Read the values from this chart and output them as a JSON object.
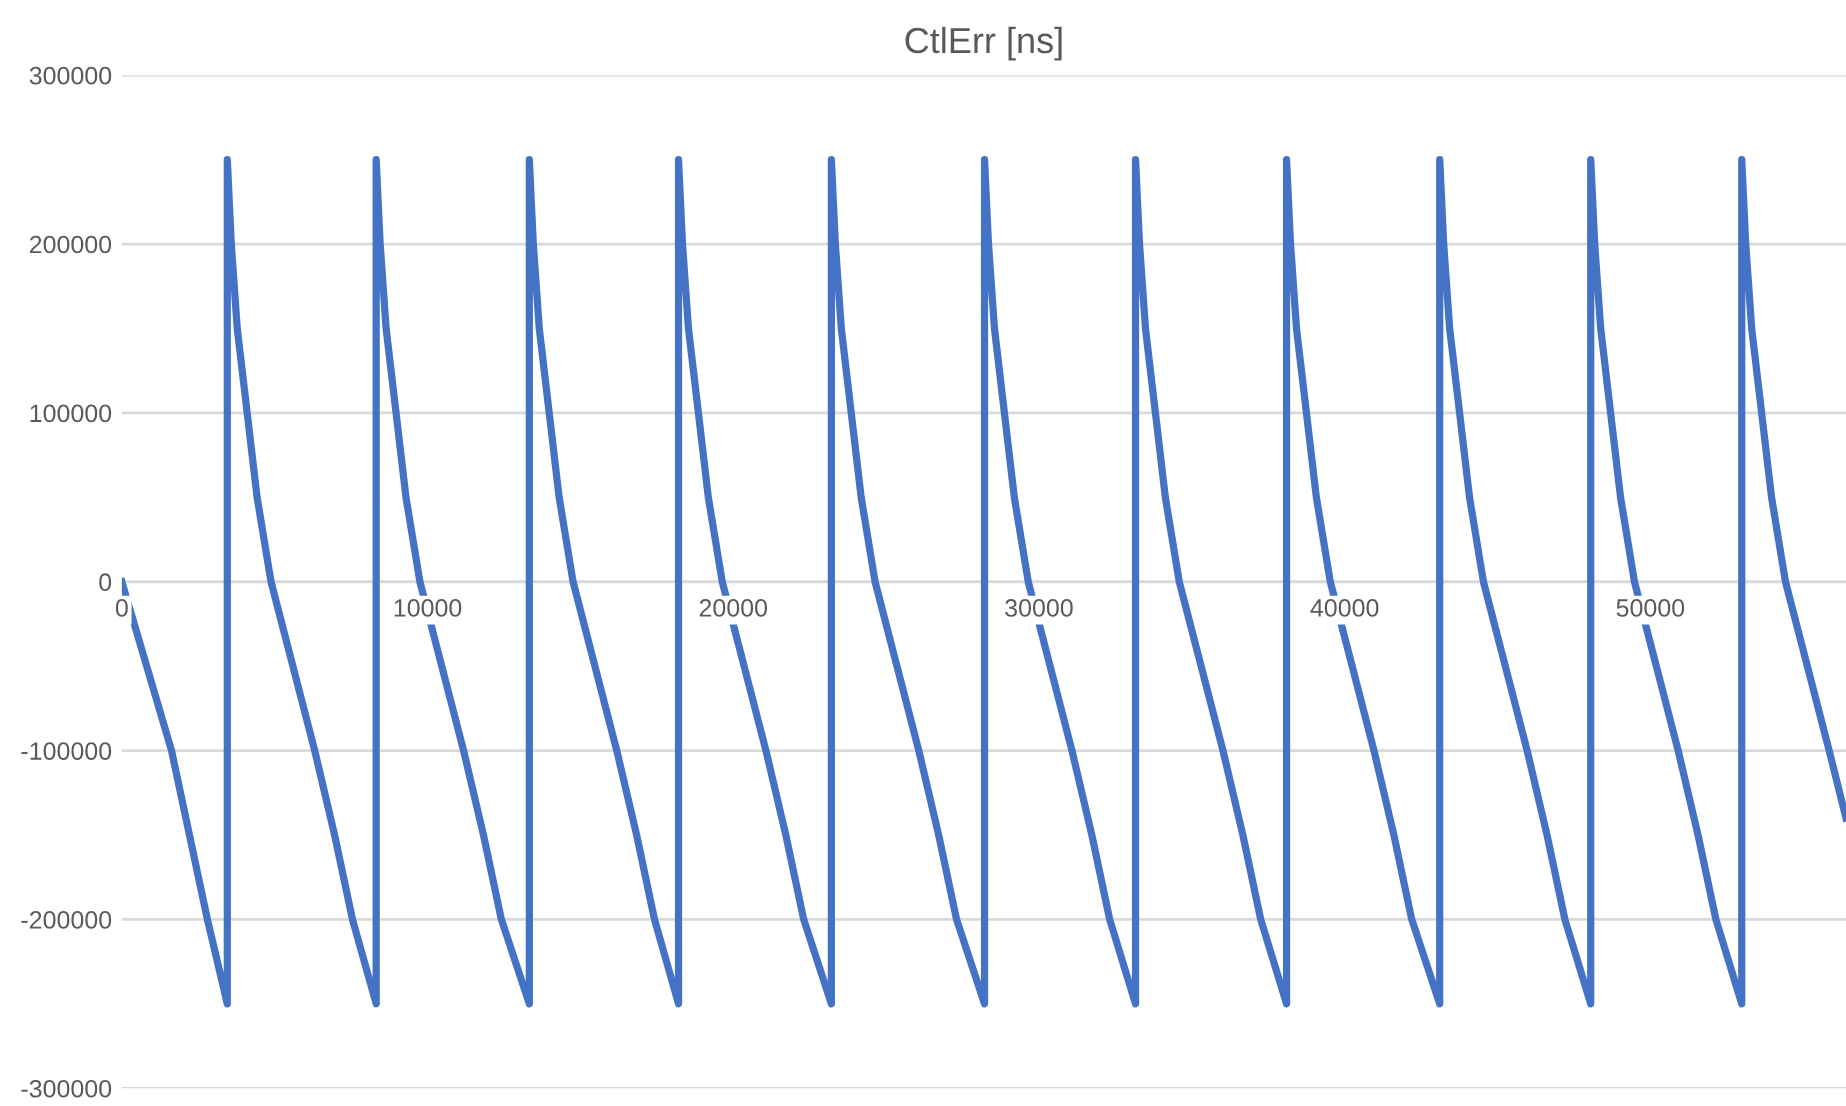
{
  "chart_data": {
    "type": "line",
    "title": "CtlErr [ns]",
    "xlim": [
      0,
      56400
    ],
    "xticks": [
      0,
      10000,
      20000,
      30000,
      40000,
      50000
    ],
    "ylim": [
      -300000,
      300000
    ],
    "yticks": [
      -300000,
      -200000,
      -100000,
      0,
      100000,
      200000,
      300000
    ],
    "grid": "y",
    "marker": "none",
    "line_style": "solid",
    "series": [
      {
        "color": "#4472c4",
        "x": [
          0,
          1625,
          2800,
          3450,
          3450,
          3580,
          3775,
          4100,
          4425,
          4880,
          5595,
          6310,
          6960,
          7545,
          8320,
          8320,
          8450,
          8645,
          8970,
          9295,
          9750,
          10465,
          11180,
          11830,
          12415,
          13330,
          13330,
          13460,
          13655,
          13980,
          14305,
          14760,
          15475,
          16190,
          16840,
          17425,
          18210,
          18210,
          18340,
          18535,
          18860,
          19185,
          19640,
          20355,
          21070,
          21720,
          22305,
          23210,
          23210,
          23340,
          23535,
          23860,
          24185,
          24640,
          25355,
          26070,
          26720,
          27305,
          28220,
          28220,
          28350,
          28545,
          28870,
          29195,
          29650,
          30365,
          31080,
          31730,
          32315,
          33160,
          33160,
          33290,
          33485,
          33810,
          34135,
          34590,
          35305,
          36020,
          36670,
          37255,
          38100,
          38100,
          38230,
          38425,
          38750,
          39075,
          39530,
          40245,
          40960,
          41610,
          42195,
          43110,
          43110,
          43240,
          43435,
          43760,
          44085,
          44540,
          45255,
          45970,
          46620,
          47205,
          48050,
          48050,
          48180,
          48375,
          48700,
          49025,
          49480,
          50195,
          50910,
          51560,
          52145,
          52990,
          52990,
          53120,
          53315,
          53640,
          53965,
          54420,
          55135,
          55850,
          56400
        ],
        "values": [
          0,
          -100000,
          -200000,
          -250000,
          250000,
          200000,
          150000,
          100000,
          50000,
          0,
          -50000,
          -100000,
          -150000,
          -200000,
          -250000,
          250000,
          200000,
          150000,
          100000,
          50000,
          0,
          -50000,
          -100000,
          -150000,
          -200000,
          -250000,
          250000,
          200000,
          150000,
          100000,
          50000,
          0,
          -50000,
          -100000,
          -150000,
          -200000,
          -250000,
          250000,
          200000,
          150000,
          100000,
          50000,
          0,
          -50000,
          -100000,
          -150000,
          -200000,
          -250000,
          250000,
          200000,
          150000,
          100000,
          50000,
          0,
          -50000,
          -100000,
          -150000,
          -200000,
          -250000,
          250000,
          200000,
          150000,
          100000,
          50000,
          0,
          -50000,
          -100000,
          -150000,
          -200000,
          -250000,
          250000,
          200000,
          150000,
          100000,
          50000,
          0,
          -50000,
          -100000,
          -150000,
          -200000,
          -250000,
          250000,
          200000,
          150000,
          100000,
          50000,
          0,
          -50000,
          -100000,
          -150000,
          -200000,
          -250000,
          250000,
          200000,
          150000,
          100000,
          50000,
          0,
          -50000,
          -100000,
          -150000,
          -200000,
          -250000,
          250000,
          200000,
          150000,
          100000,
          50000,
          0,
          -50000,
          -100000,
          -150000,
          -200000,
          -250000,
          250000,
          200000,
          150000,
          100000,
          50000,
          0,
          -50000,
          -100000,
          -140000
        ]
      }
    ]
  }
}
